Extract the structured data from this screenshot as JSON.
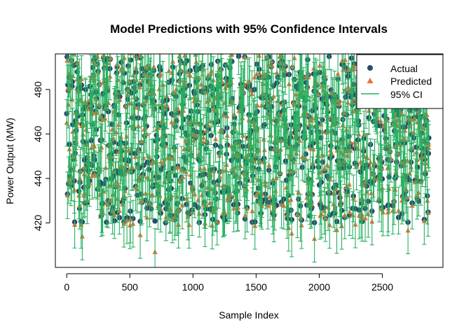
{
  "chart_data": {
    "type": "scatter",
    "title": "Model Predictions with 95% Confidence Intervals",
    "xlabel": "Sample Index",
    "ylabel": "Power Output (MW)",
    "xlim": [
      -90,
      2980
    ],
    "ylim": [
      400,
      496
    ],
    "x_ticks": [
      0,
      500,
      1000,
      1500,
      2000,
      2500
    ],
    "y_ticks": [
      420,
      440,
      460,
      480
    ],
    "n_samples": 2870,
    "y_range_actual": [
      420,
      495
    ],
    "ci_half_width": 10.5,
    "legend_position": "top-right",
    "colors": {
      "actual": "#2b4a6b",
      "predicted": "#e8733a",
      "ci": "#27b060"
    },
    "series": [
      {
        "name": "Actual",
        "marker": "circle",
        "color": "#2b4a6b"
      },
      {
        "name": "Predicted",
        "marker": "triangle",
        "color": "#e8733a"
      },
      {
        "name": "95% CI",
        "marker": "line",
        "color": "#27b060"
      }
    ]
  }
}
